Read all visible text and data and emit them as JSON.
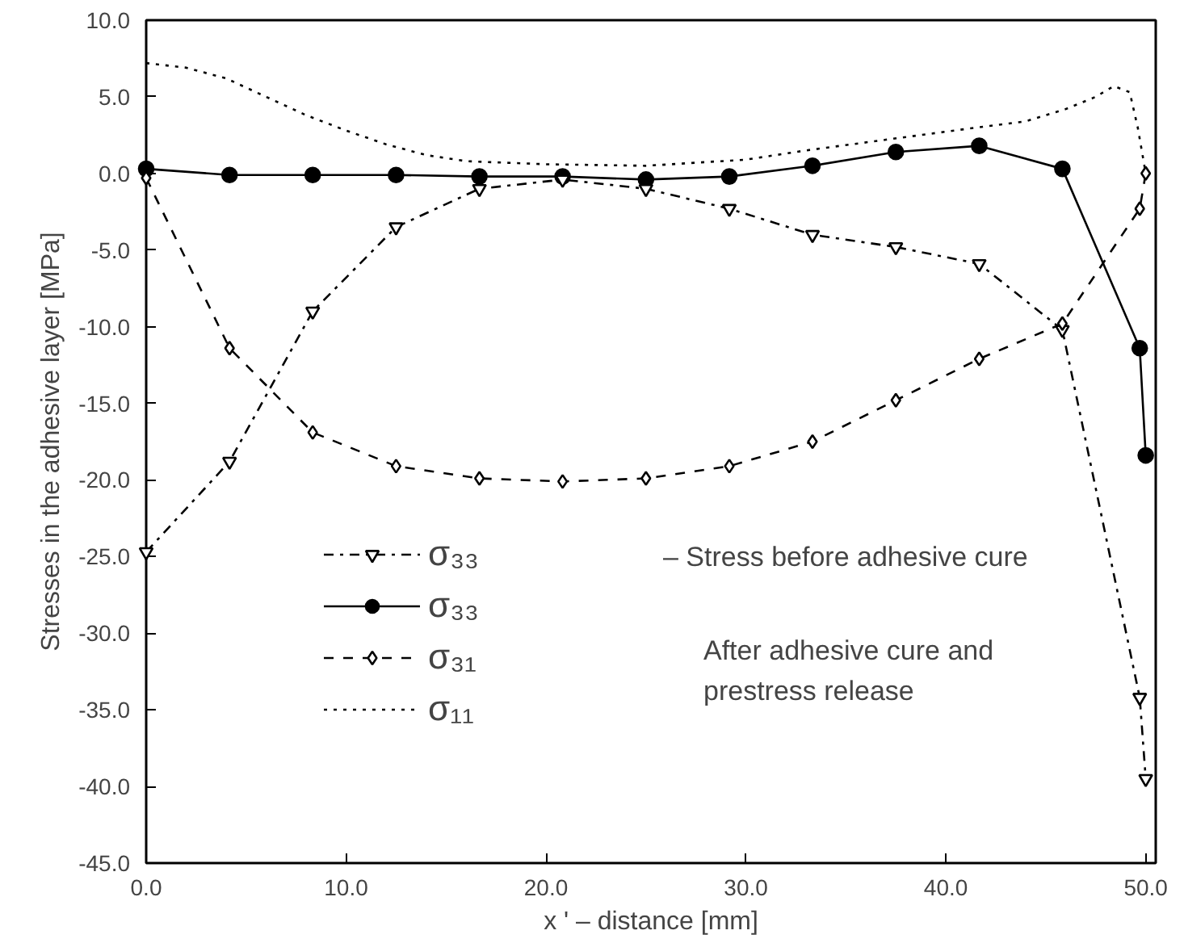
{
  "chart_data": {
    "type": "line",
    "xlabel": "x ' – distance [mm]",
    "ylabel": "Stresses in the adhesive layer [MPa]",
    "xlim": [
      0,
      50.5
    ],
    "ylim": [
      -45,
      10
    ],
    "xticks": [
      {
        "value": 0,
        "label": "0.0"
      },
      {
        "value": 10,
        "label": "10.0"
      },
      {
        "value": 20,
        "label": "20.0"
      },
      {
        "value": 30,
        "label": "30.0"
      },
      {
        "value": 40,
        "label": "40.0"
      },
      {
        "value": 50,
        "label": "50.0"
      }
    ],
    "yticks": [
      {
        "value": 10,
        "label": "10.0"
      },
      {
        "value": 5,
        "label": "5.0"
      },
      {
        "value": 0,
        "label": "0.0"
      },
      {
        "value": -5,
        "label": "-5.0"
      },
      {
        "value": -10,
        "label": "-10.0"
      },
      {
        "value": -15,
        "label": "-15.0"
      },
      {
        "value": -20,
        "label": "-20.0"
      },
      {
        "value": -25,
        "label": "-25.0"
      },
      {
        "value": -30,
        "label": "-30.0"
      },
      {
        "value": -35,
        "label": "-35.0"
      },
      {
        "value": -40,
        "label": "-40.0"
      },
      {
        "value": -45,
        "label": "-45.0"
      }
    ],
    "grid": false,
    "legend": "bottom left",
    "series": [
      {
        "name": "σ₃₃",
        "color": "#000000",
        "marker": "triangle",
        "line_style": "dashdot",
        "x": [
          0,
          4.17,
          8.33,
          12.5,
          16.67,
          20.83,
          25,
          29.17,
          33.33,
          37.5,
          41.67,
          45.83,
          49.7,
          50
        ],
        "values": [
          -24.7,
          -18.8,
          -9.0,
          -3.5,
          -1.0,
          -0.4,
          -1.0,
          -2.3,
          -4.0,
          -4.8,
          -5.9,
          -10.2,
          -34.2,
          -39.5
        ]
      },
      {
        "name": "σ₃₃",
        "color": "#000000",
        "marker": "circle",
        "line_style": "solid",
        "x": [
          0,
          4.17,
          8.33,
          12.5,
          16.67,
          20.83,
          25,
          29.17,
          33.33,
          37.5,
          41.67,
          45.83,
          49.7,
          50
        ],
        "values": [
          0.3,
          -0.1,
          -0.1,
          -0.1,
          -0.2,
          -0.2,
          -0.4,
          -0.2,
          0.5,
          1.4,
          1.8,
          0.3,
          -11.4,
          -18.4
        ]
      },
      {
        "name": "σ₃₁",
        "color": "#000000",
        "marker": "diamond",
        "line_style": "dashed",
        "x": [
          0,
          4.17,
          8.33,
          12.5,
          16.67,
          20.83,
          25,
          29.17,
          33.33,
          37.5,
          41.67,
          45.83,
          49.7,
          50
        ],
        "values": [
          -0.3,
          -11.4,
          -16.9,
          -19.1,
          -19.9,
          -20.1,
          -19.9,
          -19.1,
          -17.5,
          -14.8,
          -12.1,
          -9.8,
          -2.3,
          0.0
        ]
      },
      {
        "name": "σ₁₁",
        "color": "#000000",
        "marker": "none",
        "line_style": "dotted",
        "x": [
          0,
          2,
          4,
          6,
          8,
          10,
          12,
          14,
          16,
          20,
          25,
          30,
          33,
          37,
          41,
          44,
          46,
          47.5,
          48.4,
          49.2,
          49.6,
          50
        ],
        "values": [
          7.2,
          6.9,
          6.2,
          5.0,
          3.8,
          2.8,
          1.9,
          1.2,
          0.8,
          0.6,
          0.5,
          0.9,
          1.5,
          2.2,
          2.9,
          3.4,
          4.2,
          5.0,
          5.7,
          5.3,
          3.0,
          0.0
        ]
      }
    ],
    "annotations": [
      "–  Stress before adhesive cure",
      "After adhesive cure and",
      "prestress release"
    ]
  }
}
